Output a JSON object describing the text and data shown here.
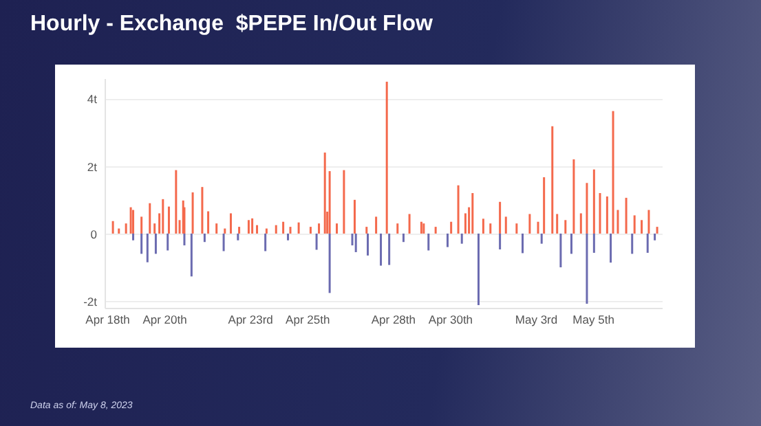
{
  "chart_data": {
    "type": "bar",
    "title": "Hourly - Exchange  $PEPE In/Out Flow",
    "annotations": [
      "Data as of: May 8, 2023"
    ],
    "grid": "y",
    "xlim": [
      "2023-04-17T22:00",
      "2023-05-07T10:00"
    ],
    "xticks": [
      {
        "value": "2023-04-18",
        "label": "Apr 18th"
      },
      {
        "value": "2023-04-20",
        "label": "Apr 20th"
      },
      {
        "value": "2023-04-23",
        "label": "Apr 23rd"
      },
      {
        "value": "2023-04-25",
        "label": "Apr 25th"
      },
      {
        "value": "2023-04-28",
        "label": "Apr 28th"
      },
      {
        "value": "2023-04-30",
        "label": "Apr 30th"
      },
      {
        "value": "2023-05-03",
        "label": "May 3rd"
      },
      {
        "value": "2023-05-05",
        "label": "May 5th"
      }
    ],
    "ylim": [
      -2.2,
      4.6
    ],
    "yticks": [
      {
        "value": -2,
        "label": "-2t"
      },
      {
        "value": 0,
        "label": "0"
      },
      {
        "value": 2,
        "label": "2t"
      },
      {
        "value": 4,
        "label": "4t"
      }
    ],
    "series": [
      {
        "color": "#f4694c",
        "x": [
          "2023-04-18T05:00",
          "2023-04-18T10:00",
          "2023-04-18T16:00",
          "2023-04-18T20:00",
          "2023-04-18T22:00",
          "2023-04-19T05:00",
          "2023-04-19T12:00",
          "2023-04-19T16:00",
          "2023-04-19T20:00",
          "2023-04-19T23:00",
          "2023-04-20T04:00",
          "2023-04-20T10:00",
          "2023-04-20T13:00",
          "2023-04-20T16:00",
          "2023-04-20T17:00",
          "2023-04-21T00:00",
          "2023-04-21T08:00",
          "2023-04-21T13:00",
          "2023-04-21T20:00",
          "2023-04-22T03:00",
          "2023-04-22T08:00",
          "2023-04-22T15:00",
          "2023-04-22T23:00",
          "2023-04-23T02:00",
          "2023-04-23T06:00",
          "2023-04-23T14:00",
          "2023-04-23T22:00",
          "2023-04-24T04:00",
          "2023-04-24T10:00",
          "2023-04-24T17:00",
          "2023-04-25T03:00",
          "2023-04-25T10:00",
          "2023-04-25T15:00",
          "2023-04-25T17:00",
          "2023-04-25T19:00",
          "2023-04-26T01:00",
          "2023-04-26T07:00",
          "2023-04-26T16:00",
          "2023-04-27T02:00",
          "2023-04-27T10:00",
          "2023-04-27T19:00",
          "2023-04-28T04:00",
          "2023-04-28T14:00",
          "2023-04-29T00:00",
          "2023-04-29T02:00",
          "2023-04-29T12:00",
          "2023-04-30T01:00",
          "2023-04-30T07:00",
          "2023-04-30T13:00",
          "2023-04-30T16:00",
          "2023-04-30T19:00",
          "2023-05-01T04:00",
          "2023-05-01T10:00",
          "2023-05-01T18:00",
          "2023-05-01T23:00",
          "2023-05-02T08:00",
          "2023-05-02T19:00",
          "2023-05-03T02:00",
          "2023-05-03T07:00",
          "2023-05-03T14:00",
          "2023-05-03T18:00",
          "2023-05-04T01:00",
          "2023-05-04T08:00",
          "2023-05-04T14:00",
          "2023-05-04T19:00",
          "2023-05-05T01:00",
          "2023-05-05T06:00",
          "2023-05-05T12:00",
          "2023-05-05T17:00",
          "2023-05-05T21:00",
          "2023-05-06T04:00",
          "2023-05-06T11:00",
          "2023-05-06T17:00",
          "2023-05-06T23:00",
          "2023-05-07T06:00"
        ],
        "values": [
          0.37,
          0.15,
          0.3,
          0.78,
          0.7,
          0.5,
          0.9,
          0.3,
          0.6,
          1.02,
          0.8,
          1.88,
          0.4,
          0.98,
          0.78,
          1.22,
          1.38,
          0.66,
          0.3,
          0.15,
          0.6,
          0.2,
          0.4,
          0.45,
          0.25,
          0.15,
          0.25,
          0.35,
          0.2,
          0.33,
          0.2,
          0.3,
          2.4,
          0.65,
          1.85,
          0.3,
          1.88,
          1.0,
          0.2,
          0.5,
          4.5,
          0.3,
          0.58,
          0.35,
          0.3,
          0.2,
          0.35,
          1.43,
          0.6,
          0.78,
          1.2,
          0.44,
          0.3,
          0.94,
          0.5,
          0.3,
          0.58,
          0.35,
          1.67,
          3.18,
          0.58,
          0.4,
          2.2,
          0.6,
          1.5,
          1.9,
          1.2,
          1.1,
          3.63,
          0.7,
          1.06,
          0.54,
          0.4,
          0.7,
          0.2
        ]
      },
      {
        "color": "#6b6bb0",
        "x": [
          "2023-04-18T22:00",
          "2023-04-19T05:00",
          "2023-04-19T10:00",
          "2023-04-19T17:00",
          "2023-04-20T03:00",
          "2023-04-20T17:00",
          "2023-04-20T23:00",
          "2023-04-21T10:00",
          "2023-04-22T02:00",
          "2023-04-22T14:00",
          "2023-04-23T13:00",
          "2023-04-24T08:00",
          "2023-04-25T08:00",
          "2023-04-25T19:00",
          "2023-04-26T14:00",
          "2023-04-26T17:00",
          "2023-04-27T03:00",
          "2023-04-27T14:00",
          "2023-04-27T21:00",
          "2023-04-28T09:00",
          "2023-04-29T06:00",
          "2023-04-29T22:00",
          "2023-04-30T10:00",
          "2023-05-01T00:00",
          "2023-05-01T18:00",
          "2023-05-02T13:00",
          "2023-05-03T05:00",
          "2023-05-03T21:00",
          "2023-05-04T06:00",
          "2023-05-04T19:00",
          "2023-05-05T01:00",
          "2023-05-05T15:00",
          "2023-05-06T09:00",
          "2023-05-06T22:00",
          "2023-05-07T04:00"
        ],
        "values": [
          -0.2,
          -0.6,
          -0.85,
          -0.6,
          -0.5,
          -0.35,
          -1.27,
          -0.25,
          -0.52,
          -0.2,
          -0.52,
          -0.2,
          -0.48,
          -1.76,
          -0.35,
          -0.55,
          -0.65,
          -0.95,
          -0.93,
          -0.25,
          -0.5,
          -0.4,
          -0.3,
          -2.12,
          -0.47,
          -0.58,
          -0.3,
          -1.0,
          -0.6,
          -2.08,
          -0.57,
          -0.86,
          -0.6,
          -0.57,
          -0.2
        ]
      }
    ]
  }
}
